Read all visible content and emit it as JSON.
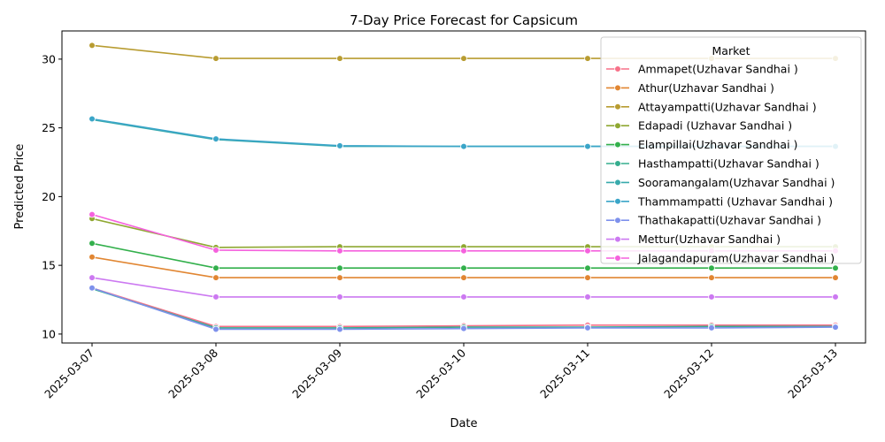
{
  "chart_data": {
    "type": "line",
    "title": "7-Day Price Forecast for Capsicum",
    "xlabel": "Date",
    "ylabel": "Predicted Price",
    "x": [
      "2025-03-07",
      "2025-03-08",
      "2025-03-09",
      "2025-03-10",
      "2025-03-11",
      "2025-03-12",
      "2025-03-13"
    ],
    "ylim": [
      9.35,
      32.05
    ],
    "yticks": [
      10,
      15,
      20,
      25,
      30
    ],
    "grid": false,
    "legend": {
      "title": "Market",
      "placement": "top-right"
    },
    "series": [
      {
        "name": "Ammapet(Uzhavar Sandhai )",
        "color": "#f77189",
        "values": [
          13.35,
          10.55,
          10.55,
          10.6,
          10.65,
          10.65,
          10.65
        ]
      },
      {
        "name": "Athur(Uzhavar Sandhai )",
        "color": "#e18632",
        "values": [
          15.6,
          14.1,
          14.1,
          14.1,
          14.1,
          14.1,
          14.1
        ]
      },
      {
        "name": "Attayampatti(Uzhavar Sandhai )",
        "color": "#b89c31",
        "values": [
          31.0,
          30.05,
          30.05,
          30.05,
          30.05,
          30.05,
          30.05
        ]
      },
      {
        "name": "Edapadi (Uzhavar Sandhai )",
        "color": "#8fa832",
        "values": [
          18.4,
          16.3,
          16.35,
          16.35,
          16.35,
          16.35,
          16.35
        ]
      },
      {
        "name": "Elampillai(Uzhavar Sandhai )",
        "color": "#33b04c",
        "values": [
          16.6,
          14.8,
          14.8,
          14.8,
          14.8,
          14.8,
          14.8
        ]
      },
      {
        "name": "Hasthampatti(Uzhavar Sandhai )",
        "color": "#35ad8e",
        "values": [
          13.3,
          10.45,
          10.45,
          10.5,
          10.5,
          10.55,
          10.55
        ]
      },
      {
        "name": "Sooramangalam(Uzhavar Sandhai )",
        "color": "#38aaac",
        "values": [
          25.6,
          24.15,
          23.65,
          23.65,
          23.65,
          23.65,
          23.65
        ]
      },
      {
        "name": "Thammampatti (Uzhavar Sandhai )",
        "color": "#3aa5c8",
        "values": [
          25.65,
          24.2,
          23.7,
          23.65,
          23.65,
          23.65,
          23.65
        ]
      },
      {
        "name": "Thathakapatti(Uzhavar Sandhai )",
        "color": "#7e91ec",
        "values": [
          13.35,
          10.35,
          10.35,
          10.4,
          10.45,
          10.45,
          10.5
        ]
      },
      {
        "name": "Mettur(Uzhavar Sandhai )",
        "color": "#cc79f1",
        "values": [
          14.1,
          12.7,
          12.7,
          12.7,
          12.7,
          12.7,
          12.7
        ]
      },
      {
        "name": "Jalagandapuram(Uzhavar Sandhai )",
        "color": "#f561dd",
        "values": [
          18.7,
          16.1,
          16.05,
          16.05,
          16.05,
          16.05,
          16.05
        ]
      }
    ]
  }
}
